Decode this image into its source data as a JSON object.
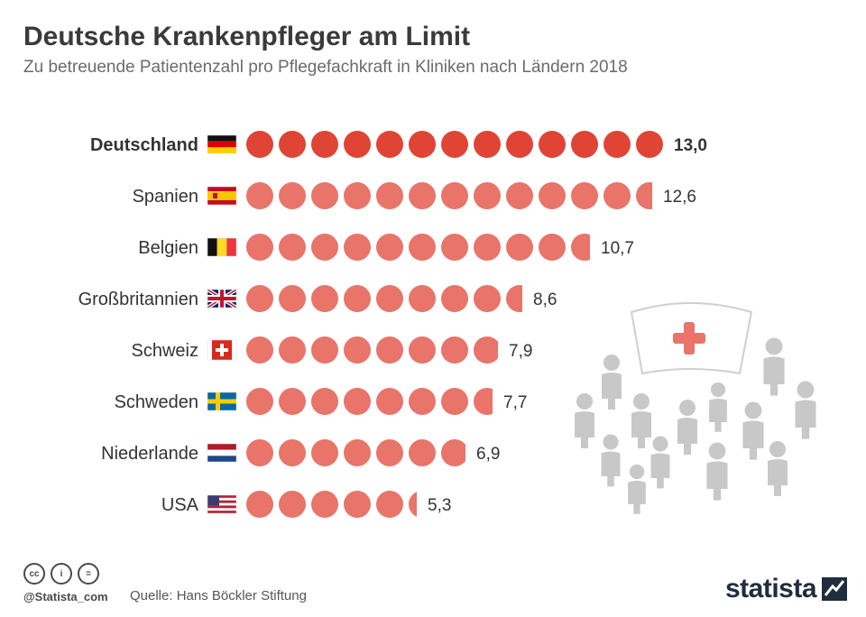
{
  "header": {
    "title": "Deutsche Krankenpfleger am Limit",
    "subtitle": "Zu betreuende Patientenzahl pro Pflegefachkraft in Kliniken nach Ländern 2018"
  },
  "chart_data": {
    "type": "bar",
    "categories": [
      "Deutschland",
      "Spanien",
      "Belgien",
      "Großbritannien",
      "Schweiz",
      "Schweden",
      "Niederlande",
      "USA"
    ],
    "values": [
      13.0,
      12.6,
      10.7,
      8.6,
      7.9,
      7.7,
      6.9,
      5.3
    ],
    "value_labels": [
      "13,0",
      "12,6",
      "10,7",
      "8,6",
      "7,9",
      "7,7",
      "6,9",
      "5,3"
    ],
    "highlight": "Deutschland",
    "colors": {
      "highlight": "#e04434",
      "default": "#e8746a"
    },
    "flags": [
      "flag-germany-icon",
      "flag-spain-icon",
      "flag-belgium-icon",
      "flag-uk-icon",
      "flag-switzerland-icon",
      "flag-sweden-icon",
      "flag-netherlands-icon",
      "flag-usa-icon"
    ]
  },
  "footer": {
    "handle": "@Statista_com",
    "source": "Quelle: Hans Böckler Stiftung",
    "logo": "statista",
    "license_icons": [
      "cc-icon",
      "by-icon",
      "nd-icon"
    ],
    "license_glyphs": [
      "cc",
      "i",
      "="
    ]
  },
  "illustration": {
    "icon": "nurse-with-patients-icon",
    "colors": {
      "people": "#c8c8c8",
      "cross": "#e8746a"
    }
  }
}
